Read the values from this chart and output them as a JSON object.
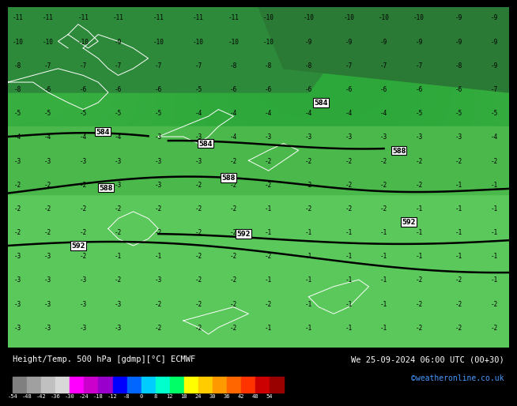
{
  "title_left": "Height/Temp. 500 hPa [gdmp][°C] ECMWF",
  "title_right": "We 25-09-2024 06:00 UTC (00+30)",
  "credit": "©weatheronline.co.uk",
  "colorbar_values": [
    -54,
    -48,
    -42,
    -36,
    -30,
    -24,
    -18,
    -12,
    -8,
    0,
    8,
    12,
    18,
    24,
    30,
    36,
    42,
    48,
    54
  ],
  "colorbar_colors": [
    "#808080",
    "#a0a0a0",
    "#c0c0c0",
    "#d8d8d8",
    "#ff00ff",
    "#cc00cc",
    "#9900cc",
    "#0000ff",
    "#0066ff",
    "#00ccff",
    "#00ffcc",
    "#00ff66",
    "#ffff00",
    "#ffcc00",
    "#ff9900",
    "#ff6600",
    "#ff3300",
    "#cc0000",
    "#990000"
  ],
  "bg_color": "#3cb34a",
  "contour_color_black": "#000000",
  "contour_color_white": "#ffffff",
  "fig_bg": "#000000",
  "bottom_bar_bg": "#000000",
  "bottom_text_color": "#ffffff"
}
